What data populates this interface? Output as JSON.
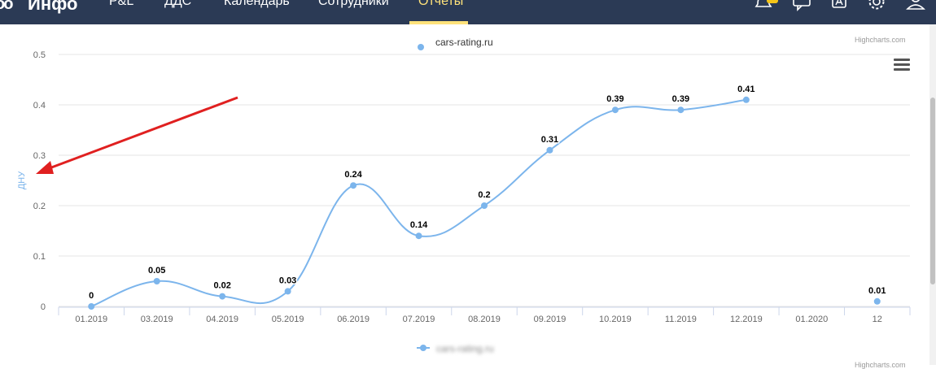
{
  "header": {
    "logo_glyph": "oo",
    "brand": "Инфо",
    "nav": [
      "P&L",
      "ДДС",
      "Календарь",
      "Сотрудники",
      "Отчеты"
    ],
    "active_tab": "Отчеты",
    "icons": [
      "bell-icon",
      "chat-icon",
      "letter-a-icon",
      "gear-icon",
      "user-icon"
    ]
  },
  "chart_area": {
    "credit_top": "Highcharts.com",
    "credit_bottom": "Highcharts.com",
    "legend_top_text": "cars-rating.ru",
    "menu_icon": "hamburger-icon"
  },
  "colors": {
    "series": "#7cb5ec",
    "header_bg": "#2b3a55",
    "active_nav": "#ffe27a",
    "arrow": "#e02020"
  },
  "chart_data": {
    "type": "line",
    "ylabel": "ДНУ",
    "ylim": [
      0,
      0.5
    ],
    "yticks": [
      "0",
      "0.1",
      "0.2",
      "0.3",
      "0.4",
      "0.5"
    ],
    "categories": [
      "01.2019",
      "03.2019",
      "04.2019",
      "05.2019",
      "06.2019",
      "07.2019",
      "08.2019",
      "09.2019",
      "10.2019",
      "11.2019",
      "12.2019",
      "01.2020",
      "12"
    ],
    "series": [
      {
        "values": [
          0,
          0.05,
          0.02,
          0.03,
          0.24,
          0.14,
          0.2,
          0.31,
          0.39,
          0.39,
          0.41,
          null,
          0.01
        ]
      }
    ],
    "data_labels": [
      "0",
      "0.05",
      "0.02",
      "0.03",
      "0.24",
      "0.14",
      "0.2",
      "0.31",
      "0.39",
      "0.39",
      "0.41",
      "",
      "0.01"
    ],
    "grid": true,
    "legend": "bottom-center"
  }
}
